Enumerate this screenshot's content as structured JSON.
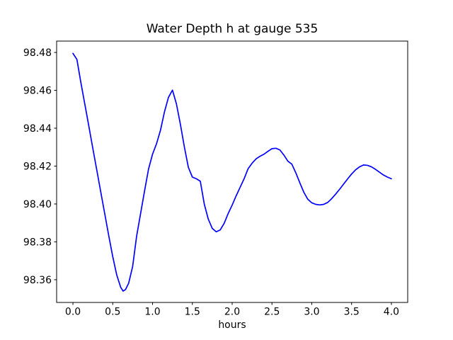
{
  "chart_data": {
    "type": "line",
    "title": "Water Depth h at gauge 535",
    "xlabel": "hours",
    "ylabel": "",
    "grid": false,
    "legend_position": "none",
    "background_color": "#ffffff",
    "spine_color": "#000000",
    "xlim": [
      -0.205,
      4.205
    ],
    "ylim": [
      98.348,
      98.486
    ],
    "xticks": [
      0.0,
      0.5,
      1.0,
      1.5,
      2.0,
      2.5,
      3.0,
      3.5,
      4.0
    ],
    "xtick_labels": [
      "0.0",
      "0.5",
      "1.0",
      "1.5",
      "2.0",
      "2.5",
      "3.0",
      "3.5",
      "4.0"
    ],
    "yticks": [
      98.36,
      98.38,
      98.4,
      98.42,
      98.44,
      98.46,
      98.48
    ],
    "ytick_labels": [
      "98.36",
      "98.38",
      "98.40",
      "98.42",
      "98.44",
      "98.46",
      "98.48"
    ],
    "series": [
      {
        "name": "water-depth-h",
        "color": "#0000ff",
        "line_width": 1.7,
        "x": [
          0.0,
          0.05,
          0.1,
          0.15,
          0.2,
          0.25,
          0.3,
          0.35,
          0.4,
          0.45,
          0.5,
          0.55,
          0.6,
          0.63,
          0.66,
          0.7,
          0.75,
          0.8,
          0.85,
          0.9,
          0.95,
          1.0,
          1.05,
          1.1,
          1.15,
          1.2,
          1.25,
          1.3,
          1.35,
          1.4,
          1.45,
          1.5,
          1.55,
          1.6,
          1.65,
          1.7,
          1.75,
          1.8,
          1.85,
          1.9,
          1.95,
          2.0,
          2.05,
          2.1,
          2.15,
          2.2,
          2.25,
          2.3,
          2.35,
          2.4,
          2.45,
          2.5,
          2.55,
          2.6,
          2.65,
          2.7,
          2.75,
          2.8,
          2.85,
          2.9,
          2.95,
          3.0,
          3.05,
          3.1,
          3.15,
          3.2,
          3.25,
          3.3,
          3.35,
          3.4,
          3.45,
          3.5,
          3.55,
          3.6,
          3.65,
          3.7,
          3.75,
          3.8,
          3.85,
          3.9,
          3.95,
          4.0
        ],
        "y": [
          98.4795,
          98.4763,
          98.464,
          98.4525,
          98.441,
          98.4293,
          98.4178,
          98.4062,
          98.3947,
          98.3832,
          98.3722,
          98.3625,
          98.356,
          98.354,
          98.3548,
          98.3582,
          98.367,
          98.383,
          98.395,
          98.407,
          98.4185,
          98.4263,
          98.4318,
          98.439,
          98.4487,
          98.4563,
          98.4601,
          98.4528,
          98.442,
          98.43,
          98.4193,
          98.4142,
          98.4133,
          98.412,
          98.3999,
          98.392,
          98.3871,
          98.3853,
          98.3863,
          98.3898,
          98.395,
          98.3994,
          98.4043,
          98.4088,
          98.4133,
          98.4186,
          98.4215,
          98.4238,
          98.4252,
          98.4263,
          98.4278,
          98.4292,
          98.4294,
          98.4285,
          98.4258,
          98.4226,
          98.421,
          98.4164,
          98.4112,
          98.4062,
          98.4025,
          98.4006,
          98.3998,
          98.3995,
          98.3998,
          98.4008,
          98.4028,
          98.4052,
          98.4078,
          98.4105,
          98.4132,
          98.4158,
          98.418,
          98.4196,
          98.4206,
          98.4204,
          98.4196,
          98.4183,
          98.4168,
          98.4153,
          98.4142,
          98.4133
        ]
      }
    ]
  }
}
